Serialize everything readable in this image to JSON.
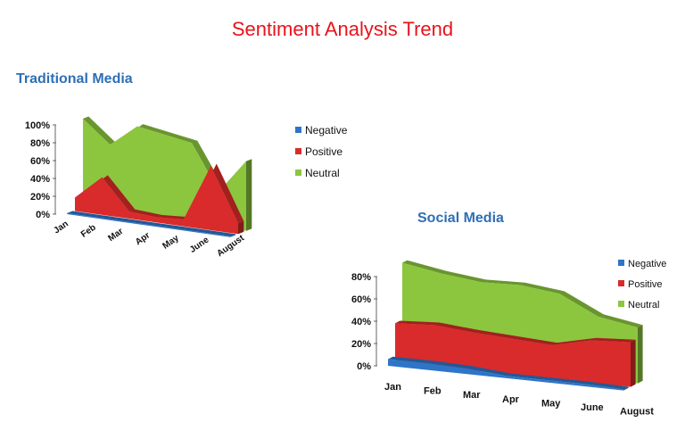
{
  "title": "Sentiment Analysis Trend",
  "chart_data": [
    {
      "type": "area",
      "title": "Traditional Media",
      "categories": [
        "Jan",
        "Feb",
        "Mar",
        "Apr",
        "May",
        "June",
        "August"
      ],
      "y_ticks": [
        "0%",
        "20%",
        "40%",
        "60%",
        "80%",
        "100%"
      ],
      "ylim": [
        0,
        100
      ],
      "legend_position": "right",
      "series": [
        {
          "name": "Negative",
          "color": "#2e75c8",
          "values": [
            1,
            1,
            1,
            1,
            1,
            1,
            1
          ]
        },
        {
          "name": "Positive",
          "color": "#d92b2b",
          "values": [
            15,
            42,
            8,
            6,
            8,
            72,
            12
          ]
        },
        {
          "name": "Neutral",
          "color": "#8cc63e",
          "values": [
            100,
            75,
            100,
            95,
            90,
            40,
            78
          ]
        }
      ]
    },
    {
      "type": "area",
      "title": "Social Media",
      "categories": [
        "Jan",
        "Feb",
        "Mar",
        "Apr",
        "May",
        "June",
        "August"
      ],
      "y_ticks": [
        "0%",
        "20%",
        "40%",
        "60%",
        "80%"
      ],
      "ylim": [
        0,
        80
      ],
      "legend_position": "right",
      "series": [
        {
          "name": "Negative",
          "color": "#2e75c8",
          "values": [
            6,
            6,
            5,
            2,
            2,
            2,
            1
          ]
        },
        {
          "name": "Positive",
          "color": "#d92b2b",
          "values": [
            35,
            37,
            34,
            32,
            30,
            38,
            40
          ]
        },
        {
          "name": "Neutral",
          "color": "#8cc63e",
          "values": [
            86,
            80,
            76,
            77,
            73,
            56,
            50
          ]
        }
      ]
    }
  ]
}
